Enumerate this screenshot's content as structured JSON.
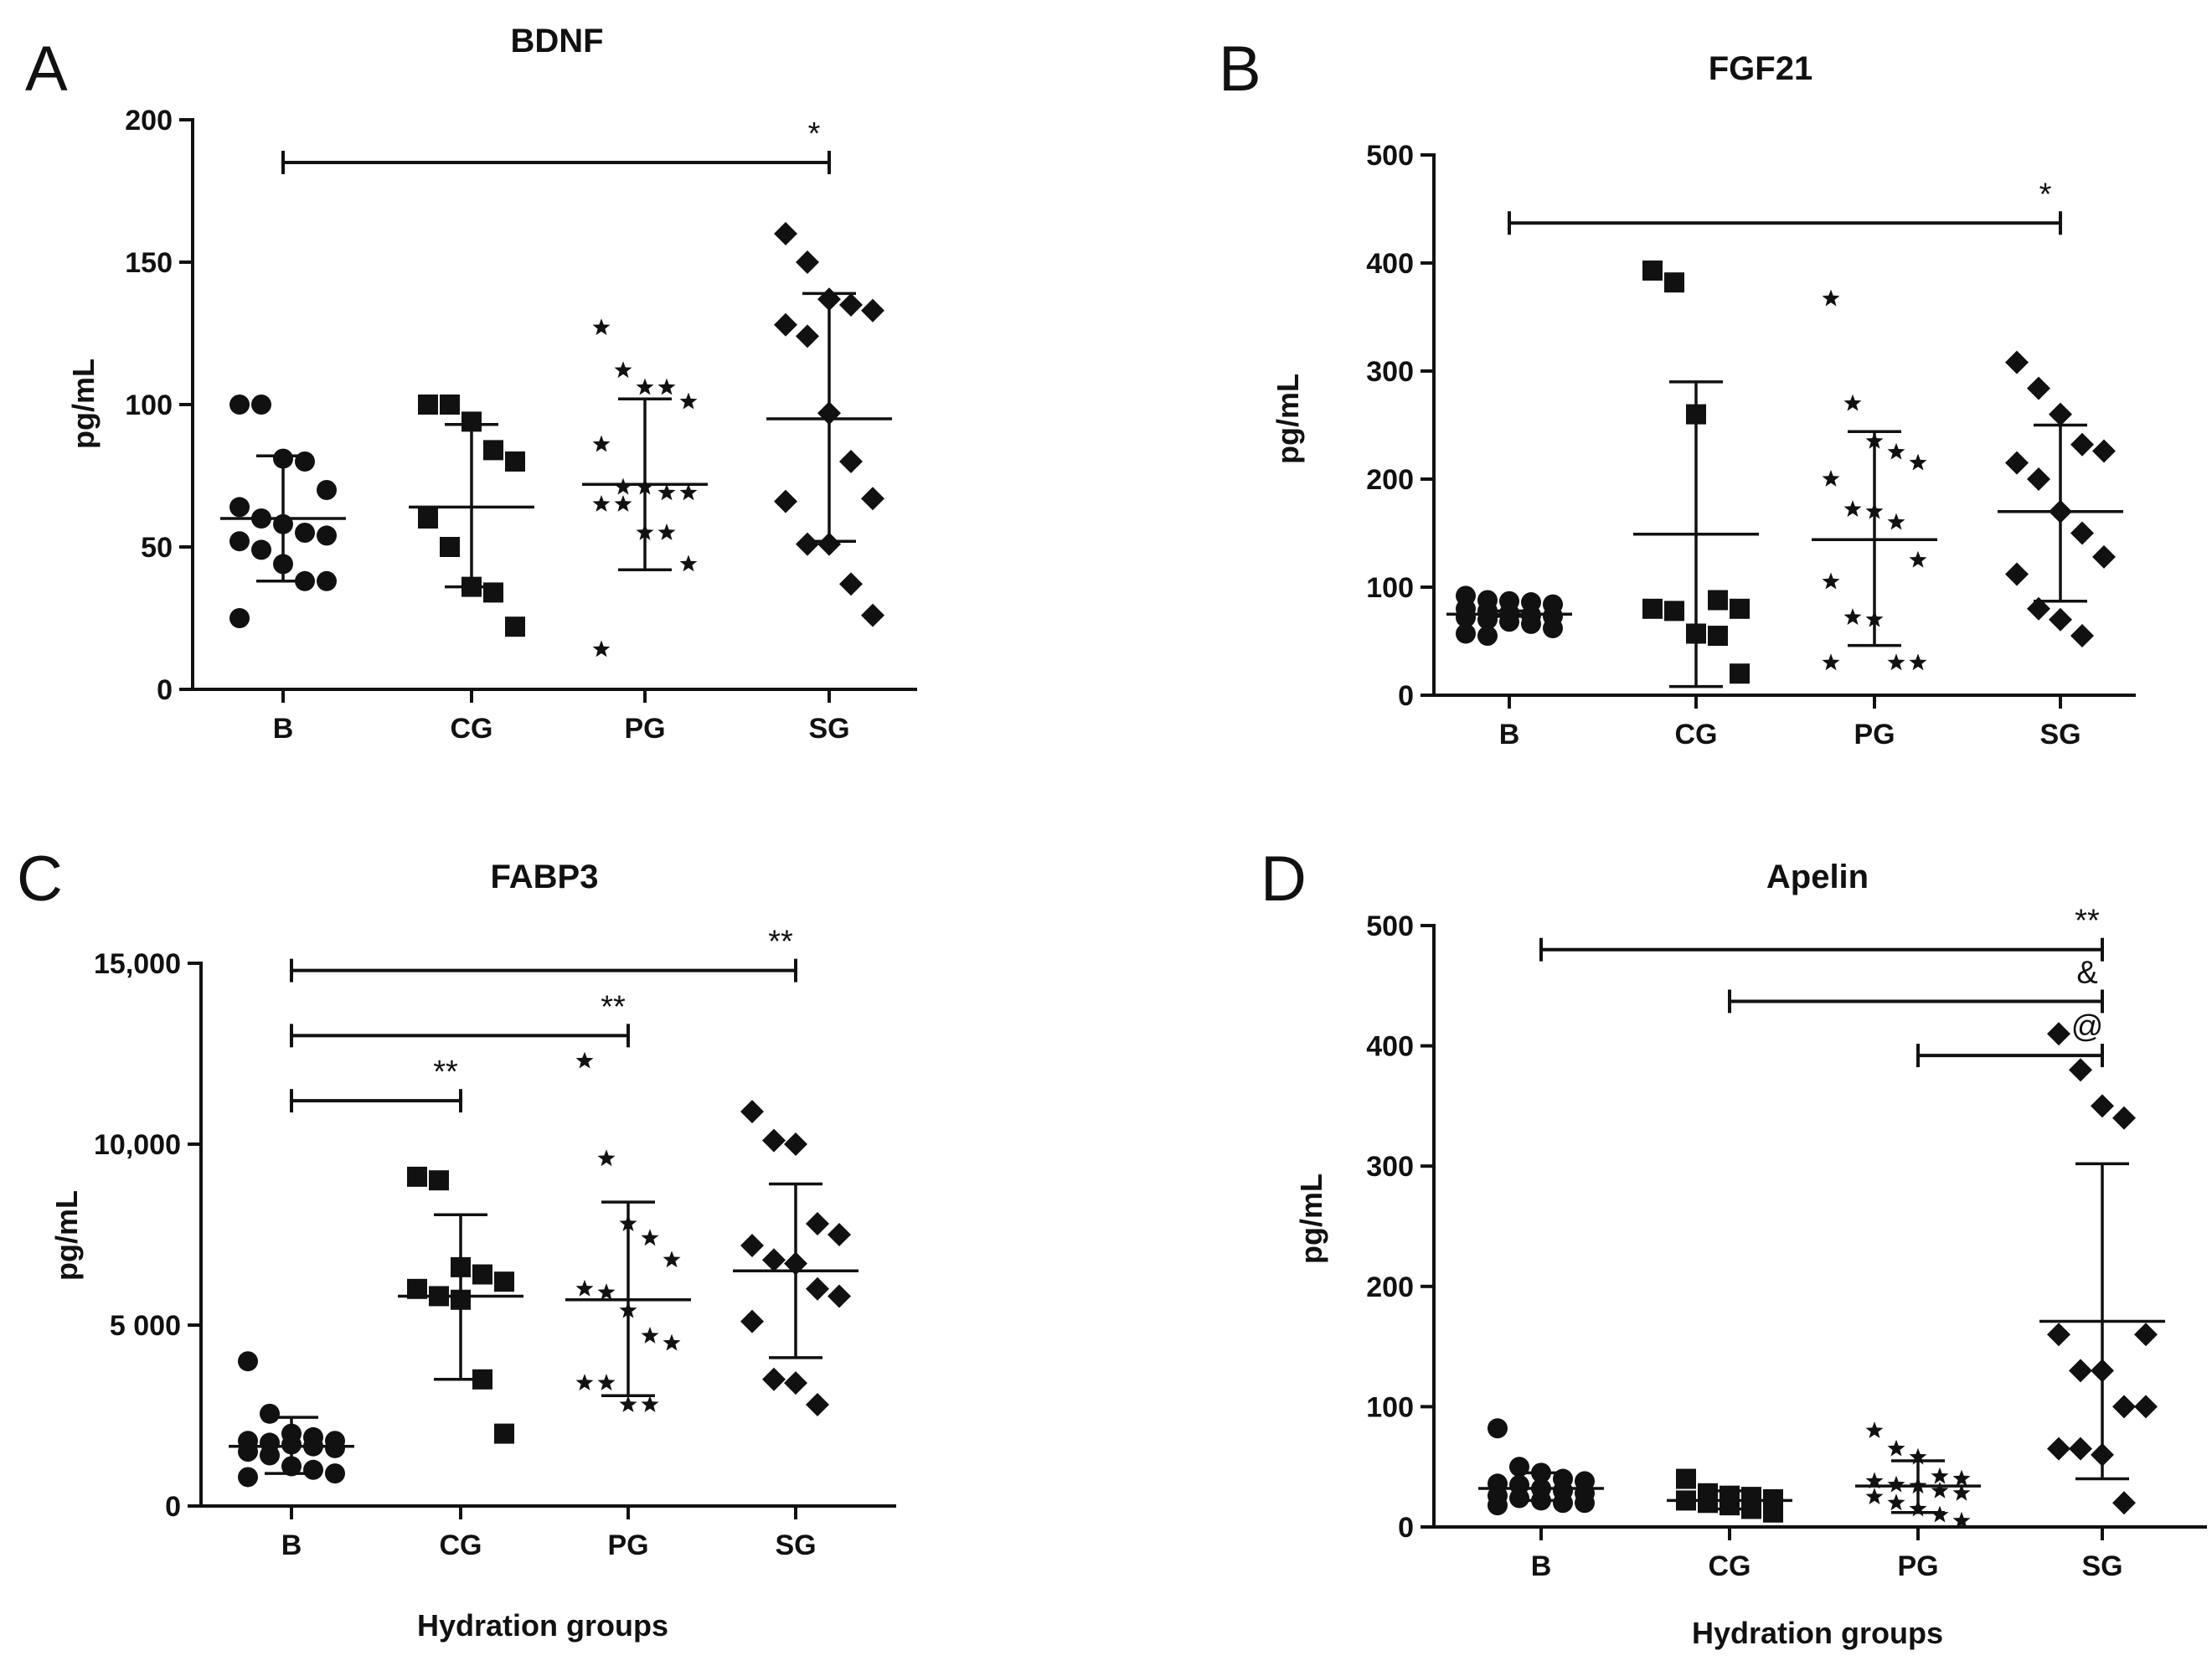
{
  "figure": {
    "common_xlabel": "Hydration groups",
    "colors": {
      "ink": "#111111",
      "background": "#ffffff"
    }
  },
  "chart_data": [
    {
      "panel": "A",
      "type": "scatter",
      "title": "BDNF",
      "ylabel": "pg/mL",
      "xlabel": "",
      "categories": [
        "B",
        "CG",
        "PG",
        "SG"
      ],
      "ylim": [
        0,
        200
      ],
      "yticks": [
        0,
        50,
        100,
        150,
        200
      ],
      "ytick_labels": [
        "0",
        "50",
        "100",
        "150",
        "200"
      ],
      "series": [
        {
          "name": "B",
          "marker": "circle",
          "values": [
            100,
            100,
            81,
            80,
            70,
            64,
            60,
            58,
            55,
            54,
            52,
            49,
            44,
            38,
            38,
            25
          ],
          "mean": 60,
          "sd_low": 38,
          "sd_high": 82
        },
        {
          "name": "CG",
          "marker": "square",
          "values": [
            100,
            100,
            94,
            84,
            80,
            60,
            50,
            36,
            34,
            22
          ],
          "mean": 64,
          "sd_low": 36,
          "sd_high": 93
        },
        {
          "name": "PG",
          "marker": "star",
          "values": [
            127,
            112,
            106,
            106,
            101,
            86,
            71,
            71,
            69,
            69,
            65,
            65,
            55,
            55,
            44,
            14
          ],
          "mean": 72,
          "sd_low": 42,
          "sd_high": 102
        },
        {
          "name": "SG",
          "marker": "diamond",
          "values": [
            160,
            150,
            137,
            135,
            133,
            128,
            124,
            97,
            80,
            67,
            66,
            51,
            51,
            37,
            26
          ],
          "mean": 95,
          "sd_low": 52,
          "sd_high": 139
        }
      ],
      "significance": [
        {
          "from": "B",
          "to": "SG",
          "y": 185,
          "label": "*"
        }
      ]
    },
    {
      "panel": "B",
      "type": "scatter",
      "title": "FGF21",
      "ylabel": "pg/mL",
      "xlabel": "",
      "categories": [
        "B",
        "CG",
        "PG",
        "SG"
      ],
      "ylim": [
        0,
        500
      ],
      "yticks": [
        0,
        100,
        200,
        300,
        400,
        500
      ],
      "ytick_labels": [
        "0",
        "100",
        "200",
        "300",
        "400",
        "500"
      ],
      "series": [
        {
          "name": "B",
          "marker": "circle",
          "values": [
            92,
            88,
            87,
            86,
            84,
            80,
            78,
            76,
            74,
            73,
            72,
            70,
            68,
            66,
            62,
            57,
            55
          ],
          "mean": 75,
          "sd_low": 73,
          "sd_high": 78
        },
        {
          "name": "CG",
          "marker": "square",
          "values": [
            393,
            382,
            260,
            88,
            80,
            80,
            78,
            57,
            55,
            20
          ],
          "mean": 149,
          "sd_low": 8,
          "sd_high": 290
        },
        {
          "name": "PG",
          "marker": "star",
          "values": [
            367,
            270,
            235,
            225,
            215,
            200,
            172,
            170,
            160,
            125,
            105,
            72,
            70,
            30,
            30,
            30
          ],
          "mean": 144,
          "sd_low": 46,
          "sd_high": 244
        },
        {
          "name": "SG",
          "marker": "diamond",
          "values": [
            308,
            284,
            260,
            232,
            226,
            215,
            200,
            170,
            150,
            128,
            112,
            80,
            70,
            55
          ],
          "mean": 170,
          "sd_low": 87,
          "sd_high": 250
        }
      ],
      "significance": [
        {
          "from": "B",
          "to": "SG",
          "y": 437,
          "label": "*"
        }
      ]
    },
    {
      "panel": "C",
      "type": "scatter",
      "title": "FABP3",
      "ylabel": "pg/mL",
      "xlabel": "Hydration groups",
      "categories": [
        "B",
        "CG",
        "PG",
        "SG"
      ],
      "ylim": [
        0,
        15000
      ],
      "yticks": [
        0,
        5000,
        10000,
        15000
      ],
      "ytick_labels": [
        "0",
        "5 000",
        "10,000",
        "15,000"
      ],
      "series": [
        {
          "name": "B",
          "marker": "circle",
          "values": [
            4000,
            2550,
            2000,
            1900,
            1800,
            1800,
            1750,
            1700,
            1650,
            1600,
            1500,
            1400,
            1100,
            1000,
            900,
            800
          ],
          "mean": 1650,
          "sd_low": 900,
          "sd_high": 2450
        },
        {
          "name": "CG",
          "marker": "square",
          "values": [
            9100,
            9000,
            6600,
            6400,
            6200,
            6000,
            5800,
            5700,
            3500,
            2000
          ],
          "mean": 5800,
          "sd_low": 3500,
          "sd_high": 8050
        },
        {
          "name": "PG",
          "marker": "star",
          "values": [
            12300,
            9600,
            7800,
            7400,
            6800,
            6000,
            5900,
            5400,
            4700,
            4500,
            3400,
            3400,
            2800,
            2800
          ],
          "mean": 5700,
          "sd_low": 3050,
          "sd_high": 8400
        },
        {
          "name": "SG",
          "marker": "diamond",
          "values": [
            10900,
            10100,
            10000,
            7800,
            7500,
            7200,
            6800,
            6700,
            6000,
            5800,
            5100,
            3500,
            3400,
            2800
          ],
          "mean": 6500,
          "sd_low": 4100,
          "sd_high": 8900
        }
      ],
      "significance": [
        {
          "from": "B",
          "to": "SG",
          "y": 14800,
          "label": "**"
        },
        {
          "from": "B",
          "to": "PG",
          "y": 13000,
          "label": "**"
        },
        {
          "from": "B",
          "to": "CG",
          "y": 11200,
          "label": "**"
        }
      ]
    },
    {
      "panel": "D",
      "type": "scatter",
      "title": "Apelin",
      "ylabel": "pg/mL",
      "xlabel": "Hydration groups",
      "categories": [
        "B",
        "CG",
        "PG",
        "SG"
      ],
      "ylim": [
        0,
        500
      ],
      "yticks": [
        0,
        100,
        200,
        300,
        400,
        500
      ],
      "ytick_labels": [
        "0",
        "100",
        "200",
        "300",
        "400",
        "500"
      ],
      "series": [
        {
          "name": "B",
          "marker": "circle",
          "values": [
            82,
            50,
            45,
            40,
            38,
            36,
            35,
            32,
            30,
            28,
            26,
            24,
            22,
            20,
            20,
            18
          ],
          "mean": 32,
          "sd_low": 22,
          "sd_high": 45
        },
        {
          "name": "CG",
          "marker": "square",
          "values": [
            40,
            28,
            26,
            25,
            23,
            22,
            20,
            18,
            15,
            12
          ],
          "mean": 22,
          "sd_low": 15,
          "sd_high": 30
        },
        {
          "name": "PG",
          "marker": "star",
          "values": [
            80,
            65,
            58,
            42,
            40,
            38,
            35,
            34,
            30,
            28,
            25,
            20,
            15,
            10,
            5
          ],
          "mean": 34,
          "sd_low": 12,
          "sd_high": 55
        },
        {
          "name": "SG",
          "marker": "diamond",
          "values": [
            410,
            380,
            350,
            340,
            160,
            160,
            130,
            130,
            100,
            100,
            65,
            65,
            60,
            20
          ],
          "mean": 171,
          "sd_low": 40,
          "sd_high": 302
        }
      ],
      "significance": [
        {
          "from": "B",
          "to": "SG",
          "y": 480,
          "label": "**"
        },
        {
          "from": "CG",
          "to": "SG",
          "y": 437,
          "label": "&"
        },
        {
          "from": "PG",
          "to": "SG",
          "y": 392,
          "label": "@"
        }
      ]
    }
  ]
}
